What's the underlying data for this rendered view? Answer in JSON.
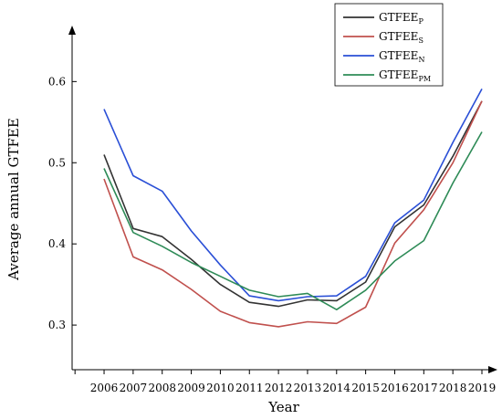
{
  "chart_data": {
    "type": "line",
    "title": "",
    "xlabel": "Year",
    "ylabel": "Average annual GTFEE",
    "x": [
      2006,
      2007,
      2008,
      2009,
      2010,
      2011,
      2012,
      2013,
      2014,
      2015,
      2016,
      2017,
      2018,
      2019
    ],
    "xlim": [
      2004.9,
      2019
    ],
    "ylim": [
      0.245,
      0.66
    ],
    "yticks": [
      0.3,
      0.4,
      0.5,
      0.6
    ],
    "ytick_labels": [
      "0.3",
      "0.4",
      "0.5",
      "0.6"
    ],
    "grid": false,
    "legend_position": "top-right",
    "series": [
      {
        "name": "GTFEE",
        "subscript": "P",
        "color": "#333333",
        "values": [
          0.51,
          0.419,
          0.409,
          0.381,
          0.35,
          0.328,
          0.323,
          0.331,
          0.33,
          0.353,
          0.421,
          0.448,
          0.508,
          0.576
        ]
      },
      {
        "name": "GTFEE",
        "subscript": "S",
        "color": "#c0504d",
        "values": [
          0.48,
          0.384,
          0.368,
          0.344,
          0.317,
          0.303,
          0.298,
          0.304,
          0.302,
          0.322,
          0.401,
          0.442,
          0.5,
          0.576
        ]
      },
      {
        "name": "GTFEE",
        "subscript": "N",
        "color": "#2a4fd6",
        "values": [
          0.566,
          0.484,
          0.465,
          0.416,
          0.374,
          0.336,
          0.33,
          0.335,
          0.336,
          0.36,
          0.426,
          0.454,
          0.525,
          0.591
        ]
      },
      {
        "name": "GTFEE",
        "subscript": "PM",
        "color": "#2e8b57",
        "values": [
          0.493,
          0.414,
          0.397,
          0.377,
          0.36,
          0.343,
          0.335,
          0.339,
          0.319,
          0.343,
          0.379,
          0.404,
          0.475,
          0.538
        ]
      }
    ]
  }
}
